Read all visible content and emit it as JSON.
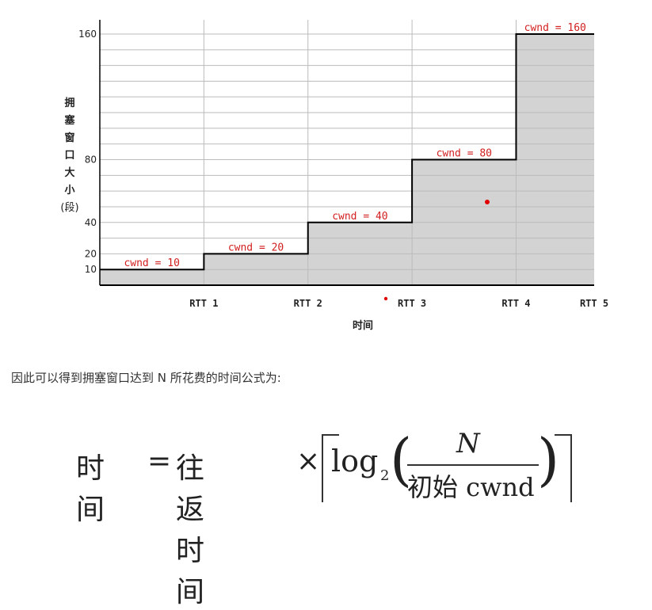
{
  "chart_data": {
    "type": "line",
    "subtype": "step",
    "ylabel": [
      "拥",
      "塞",
      "窗",
      "口",
      "大",
      "小"
    ],
    "ylabel_unit": "(段)",
    "xlabel": "时间",
    "categories": [
      "RTT 1",
      "RTT 2",
      "RTT 3",
      "RTT 4",
      "RTT 5"
    ],
    "x_steps": [
      0,
      1,
      2,
      3,
      4,
      5
    ],
    "values": [
      10,
      20,
      40,
      80,
      160
    ],
    "yticks": [
      10,
      20,
      40,
      80,
      160
    ],
    "ylim": [
      0,
      160
    ],
    "annotations": [
      "cwnd = 10",
      "cwnd = 20",
      "cwnd = 40",
      "cwnd = 80",
      "cwnd = 160"
    ],
    "fill": "area under step",
    "grid": true,
    "colors": {
      "fill": "#d3d3d3",
      "line": "#000000",
      "grid": "#bbbbbb",
      "annotation": "#d21f1f",
      "marker": "#e00000"
    }
  },
  "text": {
    "paragraph": "因此可以得到拥塞窗口达到 N 所花费的时间公式为:"
  },
  "formula": {
    "lhs": "时间",
    "eq": "=",
    "rhs_word": "往返时间",
    "times": "×",
    "log": "log",
    "log_base": "2",
    "numerator": "N",
    "denominator": "初始 cwnd"
  }
}
